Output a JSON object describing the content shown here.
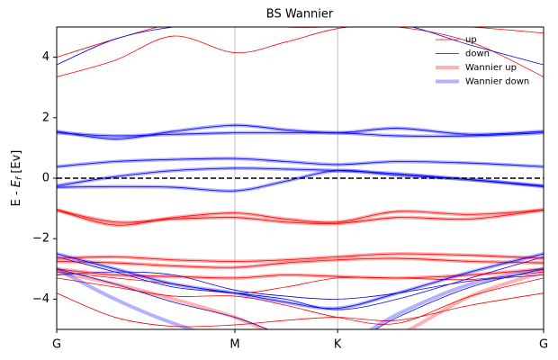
{
  "chart_data": {
    "type": "bands",
    "title": "BS Wannier",
    "ylabel": [
      "E - ",
      "E",
      "f",
      " [Ev]"
    ],
    "x": [
      0,
      0.12,
      0.24,
      0.366,
      0.47,
      0.577,
      0.7,
      0.85,
      1
    ],
    "xlim": [
      0,
      1
    ],
    "xticks": [
      {
        "value": 0,
        "label": "G"
      },
      {
        "value": 0.366,
        "label": "M"
      },
      {
        "value": 0.577,
        "label": "K"
      },
      {
        "value": 1,
        "label": "G"
      }
    ],
    "xgrid": true,
    "ylim": [
      -5,
      5
    ],
    "yticks": [
      {
        "value": -4,
        "label": "−4"
      },
      {
        "value": -2,
        "label": "−2"
      },
      0,
      2,
      4
    ],
    "hline": 0,
    "legend": "upper right",
    "series": [
      {
        "name": "up",
        "color": "#ff0000",
        "width": 0.8,
        "opacity": 1,
        "values": [
          [
            3.35,
            3.9,
            4.7,
            4.15,
            4.5,
            4.95,
            5.1,
            5.0,
            4.8
          ],
          [
            4.0,
            4.6,
            5.1,
            5.2,
            5.0,
            5.0,
            5.0,
            4.5,
            3.35
          ],
          [
            -1.05,
            -1.55,
            -1.3,
            -1.15,
            -1.35,
            -1.45,
            -1.1,
            -1.2,
            -1.05
          ],
          [
            -1.05,
            -1.45,
            -1.35,
            -1.3,
            -1.45,
            -1.5,
            -1.3,
            -1.35,
            -1.05
          ],
          [
            -2.65,
            -2.6,
            -2.7,
            -2.75,
            -2.7,
            -2.6,
            -2.5,
            -2.55,
            -2.65
          ],
          [
            -2.75,
            -2.8,
            -2.9,
            -2.95,
            -2.8,
            -2.7,
            -2.65,
            -2.75,
            -2.8
          ],
          [
            -3.0,
            -3.2,
            -3.25,
            -3.3,
            -3.2,
            -3.25,
            -3.3,
            -3.2,
            -3.0
          ],
          [
            -3.1,
            -3.3,
            -3.5,
            -3.8,
            -3.6,
            -3.3,
            -3.3,
            -3.35,
            -3.1
          ],
          [
            -3.3,
            -3.6,
            -3.9,
            -3.9,
            -4.2,
            -4.6,
            -4.8,
            -3.9,
            -3.3
          ],
          [
            -3.8,
            -4.6,
            -4.9,
            -4.85,
            -4.7,
            -4.6,
            -4.7,
            -4.2,
            -3.8
          ]
        ]
      },
      {
        "name": "down",
        "color": "#0000ff",
        "width": 0.8,
        "opacity": 1,
        "values": [
          [
            3.75,
            4.6,
            5.0,
            5.1,
            5.1,
            5.0,
            5.1,
            4.4,
            3.75
          ],
          [
            1.55,
            1.3,
            1.55,
            1.75,
            1.6,
            1.5,
            1.65,
            1.45,
            1.55
          ],
          [
            1.5,
            1.4,
            1.45,
            1.5,
            1.5,
            1.5,
            1.4,
            1.4,
            1.5
          ],
          [
            0.38,
            0.55,
            0.62,
            0.65,
            0.55,
            0.45,
            0.55,
            0.5,
            0.38
          ],
          [
            -0.25,
            0.05,
            0.25,
            0.33,
            0.3,
            0.25,
            0.15,
            -0.05,
            -0.25
          ],
          [
            -0.3,
            -0.28,
            -0.3,
            -0.42,
            -0.1,
            0.25,
            0.1,
            -0.05,
            -0.28
          ],
          [
            -2.5,
            -3.0,
            -3.5,
            -3.8,
            -4.1,
            -4.3,
            -3.8,
            -3.1,
            -2.5
          ],
          [
            -2.6,
            -3.1,
            -3.6,
            -3.8,
            -4.0,
            -4.35,
            -4.0,
            -3.3,
            -2.6
          ],
          [
            -3.2,
            -3.1,
            -3.2,
            -3.7,
            -3.9,
            -4.0,
            -3.8,
            -3.4,
            -3.2
          ],
          [
            -3.0,
            -3.5,
            -4.1,
            -4.6,
            -5.2,
            -5.6,
            -4.6,
            -3.6,
            -3.0
          ]
        ]
      },
      {
        "name": "Wannier up",
        "color": "#ff0000",
        "width": 4,
        "opacity": 0.3,
        "values": [
          [
            -1.05,
            -1.55,
            -1.3,
            -1.15,
            -1.35,
            -1.45,
            -1.1,
            -1.2,
            -1.05
          ],
          [
            -1.05,
            -1.45,
            -1.35,
            -1.3,
            -1.45,
            -1.5,
            -1.3,
            -1.35,
            -1.05
          ],
          [
            -2.65,
            -2.6,
            -2.7,
            -2.75,
            -2.7,
            -2.6,
            -2.5,
            -2.55,
            -2.65
          ],
          [
            -2.75,
            -2.8,
            -2.9,
            -2.95,
            -2.8,
            -2.7,
            -2.65,
            -2.75,
            -2.8
          ],
          [
            -3.0,
            -3.2,
            -3.25,
            -3.3,
            -3.2,
            -3.25,
            -3.3,
            -3.2,
            -3.0
          ],
          [
            -3.1,
            -3.5,
            -4.0,
            -4.6,
            -5.3,
            -5.8,
            -5.2,
            -3.9,
            -3.1
          ]
        ]
      },
      {
        "name": "Wannier down",
        "color": "#0000ff",
        "width": 4,
        "opacity": 0.3,
        "values": [
          [
            1.55,
            1.3,
            1.55,
            1.75,
            1.6,
            1.5,
            1.65,
            1.45,
            1.55
          ],
          [
            1.5,
            1.4,
            1.45,
            1.5,
            1.5,
            1.5,
            1.4,
            1.4,
            1.5
          ],
          [
            0.38,
            0.55,
            0.62,
            0.65,
            0.55,
            0.45,
            0.55,
            0.5,
            0.38
          ],
          [
            -0.25,
            0.05,
            0.25,
            0.33,
            0.3,
            0.25,
            0.15,
            -0.05,
            -0.25
          ],
          [
            -0.3,
            -0.28,
            -0.3,
            -0.42,
            -0.1,
            0.25,
            0.1,
            -0.05,
            -0.28
          ],
          [
            -2.5,
            -3.0,
            -3.5,
            -3.8,
            -4.1,
            -4.3,
            -3.8,
            -3.1,
            -2.5
          ],
          [
            -3.0,
            -4.0,
            -4.8,
            -5.4,
            -5.6,
            -5.6,
            -4.5,
            -3.5,
            -3.0
          ]
        ]
      }
    ]
  }
}
